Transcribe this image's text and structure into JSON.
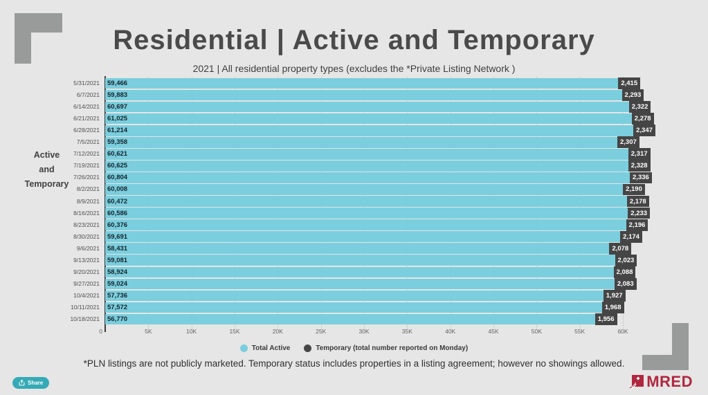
{
  "header": {
    "title": "Residential | Active and Temporary",
    "subtitle": "2021 | All residential property types (excludes the *Private Listing Network )"
  },
  "yaxis": {
    "lines": [
      "Active",
      "and",
      "Temporary"
    ]
  },
  "chart_data": {
    "type": "bar",
    "orientation": "horizontal",
    "categories": [
      "5/31/2021",
      "6/7/2021",
      "6/14/2021",
      "6/21/2021",
      "6/28/2021",
      "7/5/2021",
      "7/12/2021",
      "7/19/2021",
      "7/26/2021",
      "8/2/2021",
      "8/9/2021",
      "8/16/2021",
      "8/23/2021",
      "8/30/2021",
      "9/6/2021",
      "9/13/2021",
      "9/20/2021",
      "9/27/2021",
      "10/4/2021",
      "10/11/2021",
      "10/18/2021"
    ],
    "series": [
      {
        "name": "Total Active",
        "color": "#7bcedd",
        "values": [
          59466,
          59883,
          60697,
          61025,
          61214,
          59358,
          60621,
          60625,
          60804,
          60008,
          60472,
          60586,
          60376,
          59691,
          58431,
          59081,
          58924,
          59024,
          57736,
          57572,
          56770
        ]
      },
      {
        "name": "Temporary (total number reported on Monday)",
        "color": "#454545",
        "values": [
          2415,
          2293,
          2322,
          2278,
          2347,
          2307,
          2317,
          2328,
          2336,
          2190,
          2178,
          2233,
          2196,
          2174,
          2078,
          2023,
          2088,
          2083,
          1927,
          1968,
          1956
        ]
      }
    ],
    "x_ticks": [
      "0",
      "5K",
      "10K",
      "15K",
      "20K",
      "25K",
      "30K",
      "35K",
      "40K",
      "45K",
      "50K",
      "55K",
      "60K"
    ],
    "xlim": [
      0,
      60000
    ],
    "grid": true,
    "legend_position": "bottom",
    "ylabel": "Active and Temporary",
    "title": "Residential | Active and Temporary"
  },
  "footnote": {
    "text": "*PLN listings are not publicly marketed. Temporary status includes properties in a listing agreement; however no showings allowed."
  },
  "share": {
    "label": "Share"
  },
  "logo": {
    "text": "MRED"
  },
  "colors": {
    "background": "#e5e6e5",
    "bar_active": "#7bcedd",
    "badge_temporary": "#454545",
    "decor_gray": "#999a9a",
    "brand_red": "#b12740",
    "share_teal": "#35aab6"
  }
}
